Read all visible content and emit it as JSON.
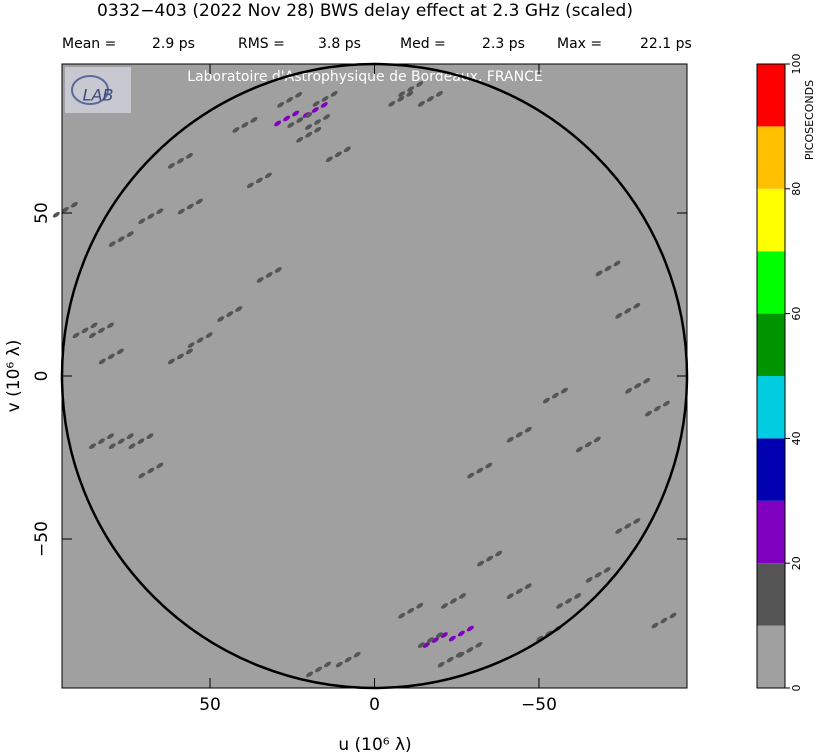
{
  "chart_data": {
    "type": "scatter",
    "title": "0332−403  (2022 Nov 28)   BWS delay effect at  2.3 GHz (scaled)",
    "stats": [
      {
        "name": "Mean =",
        "value": "2.9 ps"
      },
      {
        "name": "RMS =",
        "value": "3.8 ps"
      },
      {
        "name": "Med =",
        "value": "2.3 ps"
      },
      {
        "name": "Max =",
        "value": "22.1 ps"
      }
    ],
    "watermark": "Laboratoire d'Astrophysique de Bordeaux, FRANCE",
    "logo": "LAB",
    "xlabel": "u  (10⁶ λ)",
    "ylabel": "v  (10⁶ λ)",
    "xlim": [
      95,
      -95
    ],
    "ylim": [
      -95.7,
      95.7
    ],
    "xticks": [
      50,
      0,
      {
        "value": -50,
        "label": "−50"
      }
    ],
    "yticks": [
      {
        "value": -50,
        "label": "−50"
      },
      0,
      50
    ],
    "background_color": "#a0a0a0",
    "spots": {
      "u": [
        26.7,
        18,
        -18.5,
        -26.4,
        22.7,
        17.3,
        25.8,
        39.4,
        59,
        35,
        56,
        68,
        77,
        94,
        83,
        88,
        80,
        59,
        77,
        71,
        44,
        32,
        11,
        -11,
        -17,
        -71,
        -77,
        -80,
        -86,
        -55,
        -44,
        -65,
        -32,
        -35,
        -68,
        -77,
        -59,
        -44,
        -24,
        -29,
        8,
        17,
        -11,
        -17,
        -23,
        -53,
        -88,
        68,
        53,
        83,
        -8,
        15,
        20
      ],
      "v": [
        79,
        81.6,
        -81,
        -79,
        78.5,
        77.9,
        84.7,
        77,
        66,
        60,
        52,
        49,
        42,
        51,
        14,
        14,
        6,
        6,
        -20,
        -20,
        19,
        31,
        68,
        88,
        85,
        33,
        20,
        -3,
        -10,
        -6,
        -18,
        -21,
        -29,
        -56,
        -61,
        -46,
        -69,
        -66,
        -69,
        -84,
        -87,
        -90,
        -72,
        -81,
        -87,
        -79,
        -75,
        -29,
        11,
        -20,
        85,
        85,
        74
      ],
      "delay": [
        22.1,
        21,
        21.5,
        21,
        15,
        16,
        14,
        13,
        14,
        13,
        12,
        13,
        12,
        12,
        13,
        12,
        13,
        12,
        12,
        13,
        12,
        12,
        12,
        13,
        12,
        12,
        13,
        14,
        13,
        12,
        12,
        12,
        12,
        13,
        13,
        14,
        13,
        12,
        14,
        15,
        13,
        12,
        13,
        16,
        15,
        13,
        12,
        12,
        12,
        12,
        12,
        13,
        14
      ]
    },
    "colorbar": {
      "label": "PICOSECONDS",
      "lim": [
        0,
        100
      ],
      "ticks": [
        0,
        20,
        40,
        60,
        80,
        100
      ],
      "colors": [
        "#a0a0a0",
        "#555555",
        "#8000c0",
        "#0000b0",
        "#00cde0",
        "#009400",
        "#00ff00",
        "#ffff00",
        "#ffc000",
        "#ff0000"
      ]
    }
  }
}
